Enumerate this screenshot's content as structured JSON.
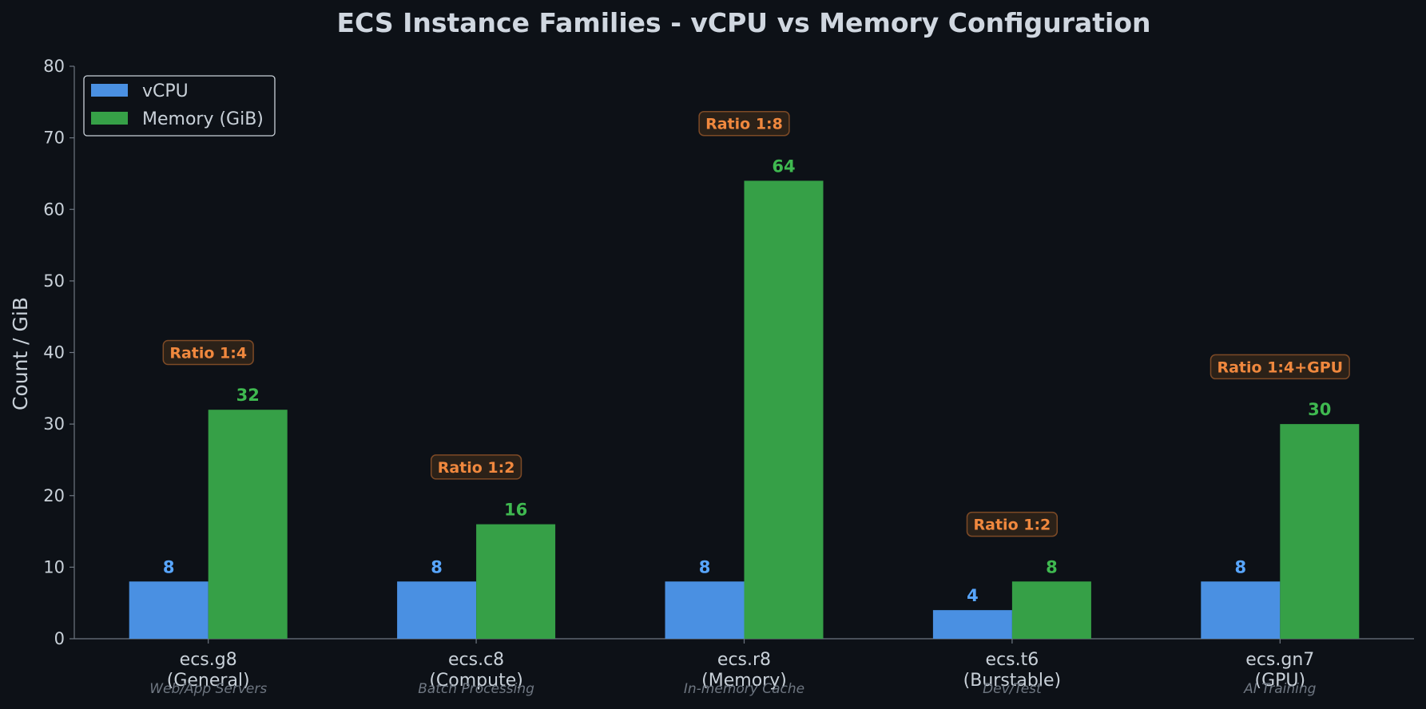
{
  "colors": {
    "background": "#0d1117",
    "vcpu": "#4a90e2",
    "vcpu_label": "#58a6ff",
    "memory": "#36a047",
    "memory_label": "#3fb950",
    "ratio_text": "#f0883e",
    "ratio_bg": "#2b2118",
    "ratio_border": "#7d4a26",
    "axis": "#6e7681",
    "text": "#c9d1d9"
  },
  "chart_data": {
    "type": "bar",
    "title": "ECS Instance Families - vCPU vs Memory Configuration",
    "xlabel": "",
    "ylabel": "Count / GiB",
    "ylim": [
      0,
      80
    ],
    "yticks": [
      0,
      10,
      20,
      30,
      40,
      50,
      60,
      70,
      80
    ],
    "grid": false,
    "legend_position": "top-left",
    "categories": [
      {
        "name": "ecs.g8",
        "family": "(General)",
        "use_case": "Web/App Servers"
      },
      {
        "name": "ecs.c8",
        "family": "(Compute)",
        "use_case": "Batch Processing"
      },
      {
        "name": "ecs.r8",
        "family": "(Memory)",
        "use_case": "In-memory Cache"
      },
      {
        "name": "ecs.t6",
        "family": "(Burstable)",
        "use_case": "Dev/Test"
      },
      {
        "name": "ecs.gn7",
        "family": "(GPU)",
        "use_case": "AI Training"
      }
    ],
    "series": [
      {
        "name": "vCPU",
        "values": [
          8,
          8,
          8,
          4,
          8
        ]
      },
      {
        "name": "Memory (GiB)",
        "values": [
          32,
          16,
          64,
          8,
          30
        ]
      }
    ],
    "annotations": [
      {
        "text": "Ratio 1:4",
        "y": 40
      },
      {
        "text": "Ratio 1:2",
        "y": 24
      },
      {
        "text": "Ratio 1:8",
        "y": 72
      },
      {
        "text": "Ratio 1:2",
        "y": 16
      },
      {
        "text": "Ratio 1:4+GPU",
        "y": 38
      }
    ]
  }
}
